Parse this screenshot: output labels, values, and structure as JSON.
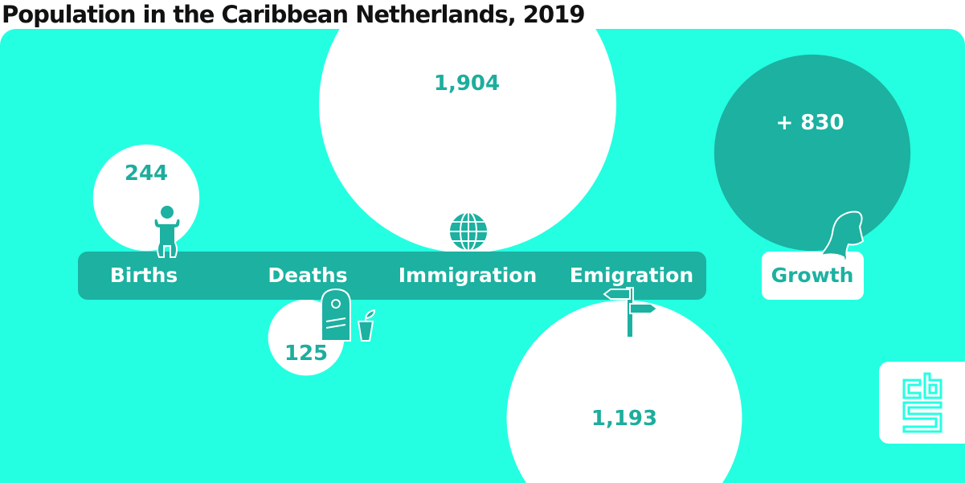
{
  "chart_data": {
    "type": "bubble",
    "title": "Population in the Caribbean Netherlands, 2019",
    "categories": [
      "Births",
      "Deaths",
      "Immigration",
      "Emigration",
      "Growth"
    ],
    "values": [
      244,
      125,
      1904,
      1193,
      830
    ],
    "value_labels": [
      "244",
      "125",
      "1,904",
      "1,193",
      "+ 830"
    ],
    "size_encoding": "area"
  },
  "colors": {
    "background": "#24FFE2",
    "bar": "#1CB1A0",
    "growth_bubble": "#1CB1A0",
    "bubble": "#FFFFFF",
    "text": "#1EAD9D"
  },
  "logo": {
    "text": "cbs"
  }
}
